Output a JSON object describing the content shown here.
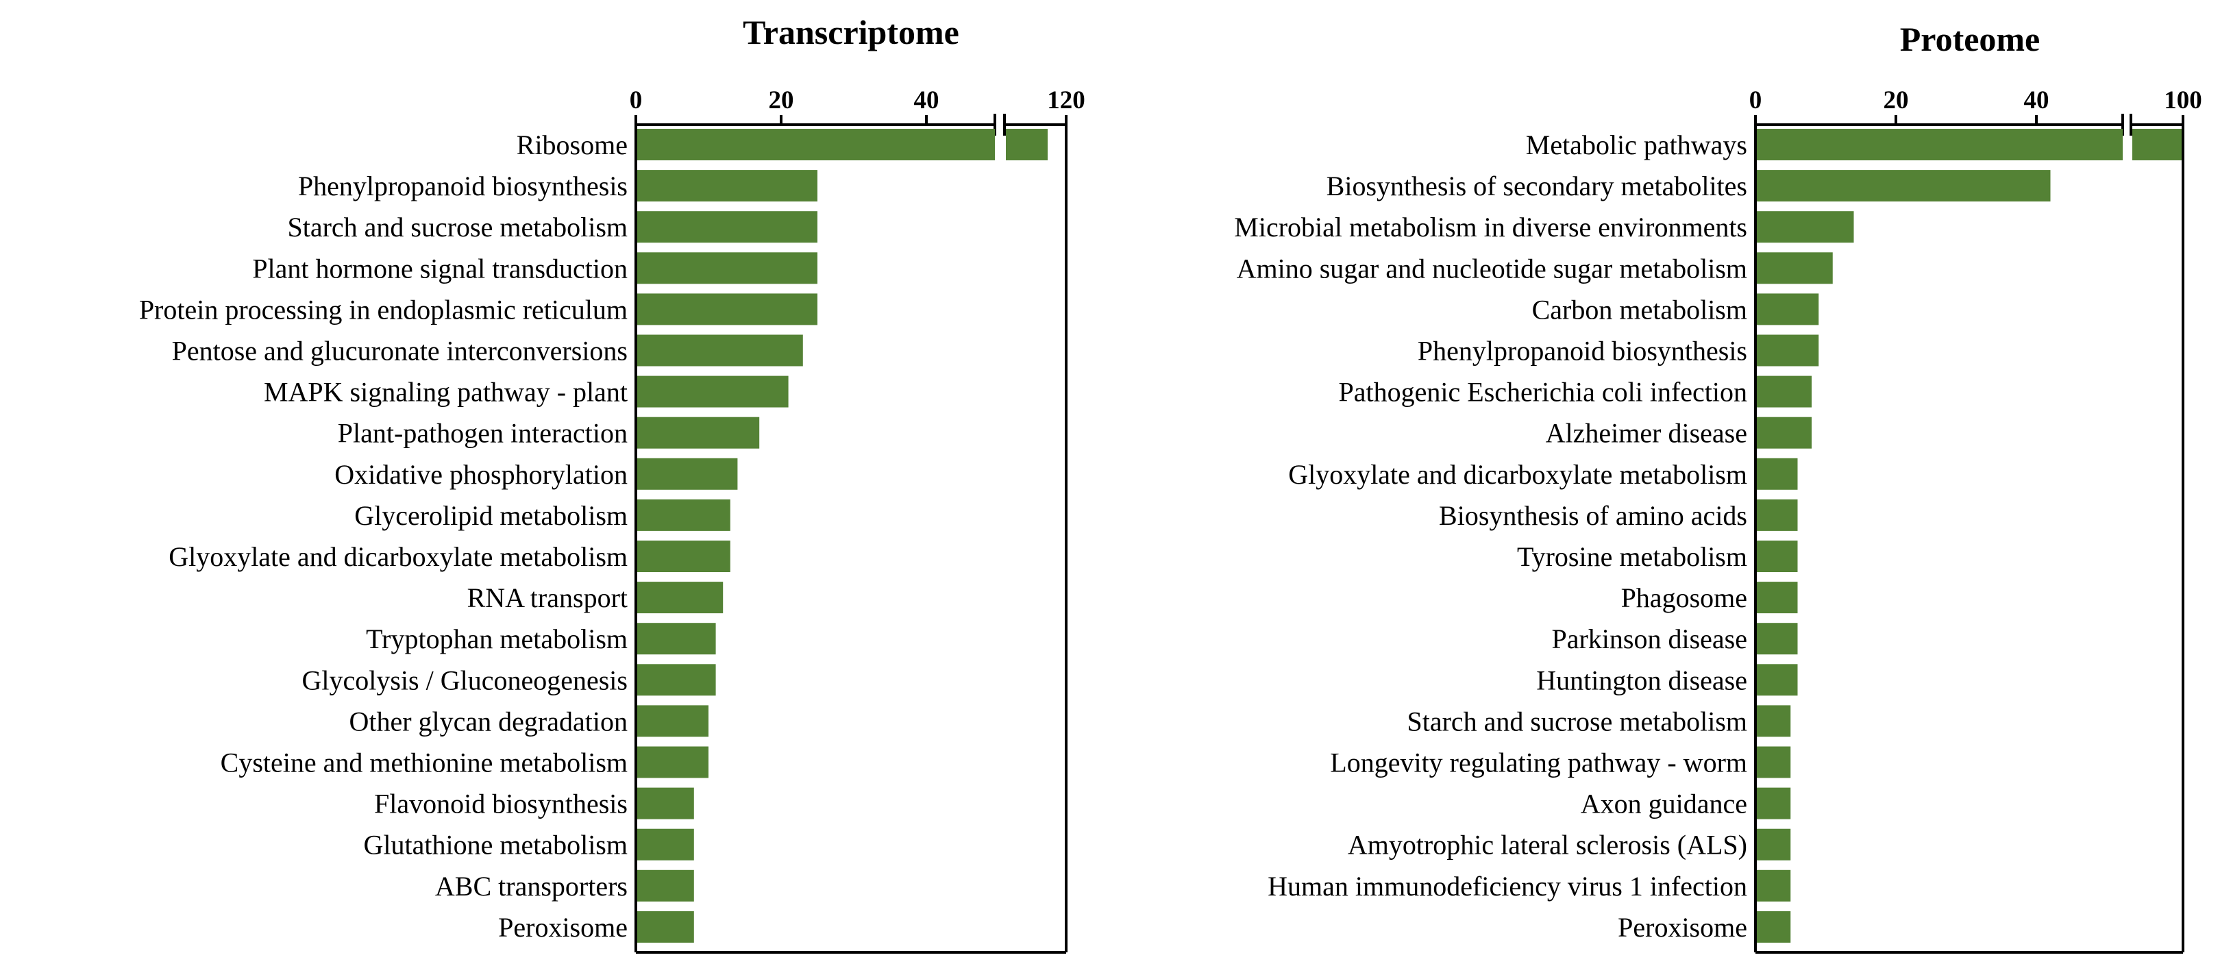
{
  "colors": {
    "bar": "#548235",
    "axis": "#000000",
    "background": "#ffffff"
  },
  "chart_data": [
    {
      "type": "bar",
      "orientation": "horizontal",
      "title": "Transcriptome",
      "xaxis_position": "top",
      "axis_break": {
        "from": 50,
        "to": 110
      },
      "ticks": [
        0,
        20,
        40,
        120
      ],
      "tick_labels": [
        "0",
        "20",
        "40",
        "120"
      ],
      "xlim": [
        0,
        120
      ],
      "categories": [
        "Ribosome",
        "Phenylpropanoid biosynthesis",
        "Starch and sucrose metabolism",
        "Plant hormone signal transduction",
        "Protein processing in endoplasmic reticulum",
        "Pentose and glucuronate interconversions",
        "MAPK signaling pathway - plant",
        "Plant-pathogen interaction",
        "Oxidative phosphorylation",
        "Glycerolipid metabolism",
        "Glyoxylate and dicarboxylate metabolism",
        "RNA transport",
        "Tryptophan metabolism",
        "Glycolysis / Gluconeogenesis",
        "Other glycan degradation",
        "Cysteine and methionine metabolism",
        "Flavonoid biosynthesis",
        "Glutathione metabolism",
        "ABC transporters",
        "Peroxisome"
      ],
      "values": [
        117,
        25,
        25,
        25,
        25,
        23,
        21,
        17,
        14,
        13,
        13,
        12,
        11,
        11,
        10,
        10,
        8,
        8,
        8,
        8
      ]
    },
    {
      "type": "bar",
      "orientation": "horizontal",
      "title": "Proteome",
      "xaxis_position": "top",
      "axis_break": {
        "from": 50,
        "to": 95
      },
      "ticks": [
        0,
        20,
        40,
        100
      ],
      "tick_labels": [
        "0",
        "20",
        "40",
        "100"
      ],
      "xlim": [
        0,
        100
      ],
      "categories": [
        "Metabolic pathways",
        "Biosynthesis of secondary metabolites",
        "Microbial metabolism in diverse environments",
        "Amino sugar and nucleotide sugar metabolism",
        "Carbon metabolism",
        "Phenylpropanoid biosynthesis",
        "Pathogenic Escherichia coli infection",
        "Alzheimer disease",
        "Glyoxylate and dicarboxylate metabolism",
        "Biosynthesis of amino acids",
        "Tyrosine metabolism",
        "Phagosome",
        "Parkinson disease",
        "Huntington disease",
        "Starch and sucrose metabolism",
        "Longevity regulating pathway - worm",
        "Axon guidance",
        "Amyotrophic lateral sclerosis (ALS)",
        "Human immunodeficiency virus 1 infection",
        "Peroxisome"
      ],
      "values": [
        100,
        42,
        14,
        11,
        9,
        9,
        8,
        8,
        6,
        6,
        6,
        6,
        6,
        6,
        5,
        5,
        5,
        5,
        5,
        5
      ]
    }
  ]
}
